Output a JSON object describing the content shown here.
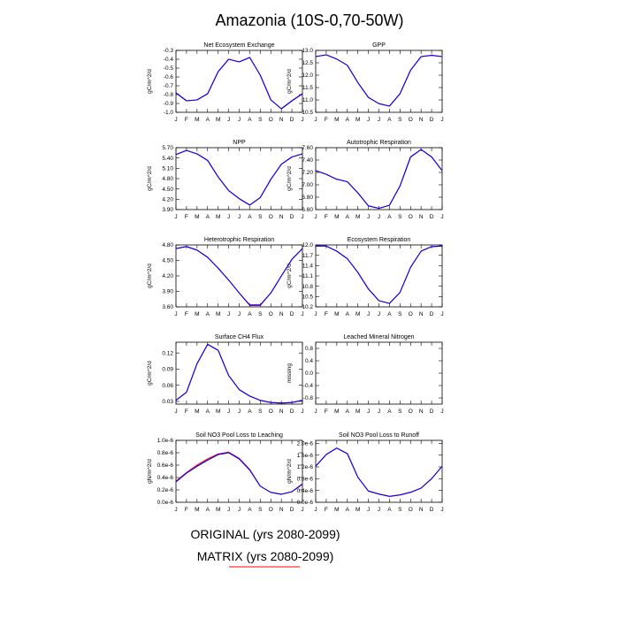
{
  "figure": {
    "title": "Amazonia (10S-0,70-50W)",
    "legend": [
      {
        "label": "ORIGINAL (yrs 2080-2099)",
        "color": "#0000ff"
      },
      {
        "label": "MATRIX (yrs 2080-2099)",
        "color": "#ff0000"
      }
    ],
    "month_labels": [
      "J",
      "F",
      "M",
      "A",
      "M",
      "J",
      "J",
      "A",
      "S",
      "O",
      "N",
      "D",
      "J"
    ]
  },
  "chart_data": [
    {
      "type": "line",
      "title": "Net Ecosystem Exchange",
      "ylabel": "gC/m^2/d",
      "ylim": [
        -1.0,
        -0.3
      ],
      "yticks": [
        "-0.3",
        "-0.4",
        "-0.5",
        "-0.6",
        "-0.7",
        "-0.8",
        "-0.9",
        "-1.0"
      ],
      "x": [
        "J",
        "F",
        "M",
        "A",
        "M",
        "J",
        "J",
        "A",
        "S",
        "O",
        "N",
        "D",
        "J"
      ],
      "series": [
        {
          "values": [
            -0.78,
            -0.87,
            -0.86,
            -0.79,
            -0.54,
            -0.4,
            -0.43,
            -0.38,
            -0.58,
            -0.86,
            -0.96,
            -0.87,
            -0.79
          ]
        },
        {
          "values": [
            -0.78,
            -0.87,
            -0.86,
            -0.79,
            -0.54,
            -0.4,
            -0.43,
            -0.38,
            -0.58,
            -0.86,
            -0.96,
            -0.87,
            -0.79
          ]
        }
      ]
    },
    {
      "type": "line",
      "title": "GPP",
      "ylabel": "gC/m^2/d",
      "ylim": [
        10.5,
        13.0
      ],
      "yticks": [
        "13.0",
        "12.5",
        "12.0",
        "11.5",
        "11.0",
        "10.5"
      ],
      "x": [
        "J",
        "F",
        "M",
        "A",
        "M",
        "J",
        "J",
        "A",
        "S",
        "O",
        "N",
        "D",
        "J"
      ],
      "series": [
        {
          "values": [
            12.75,
            12.82,
            12.65,
            12.4,
            11.7,
            11.1,
            10.85,
            10.75,
            11.25,
            12.2,
            12.75,
            12.8,
            12.75
          ]
        },
        {
          "values": [
            12.75,
            12.82,
            12.65,
            12.4,
            11.7,
            11.1,
            10.85,
            10.75,
            11.25,
            12.2,
            12.75,
            12.8,
            12.75
          ]
        }
      ]
    },
    {
      "type": "line",
      "title": "NPP",
      "ylabel": "gC/m^2/d",
      "ylim": [
        3.9,
        5.7
      ],
      "yticks": [
        "5.70",
        "5.40",
        "5.10",
        "4.80",
        "4.50",
        "4.20",
        "3.90"
      ],
      "x": [
        "J",
        "F",
        "M",
        "A",
        "M",
        "J",
        "J",
        "A",
        "S",
        "O",
        "N",
        "D",
        "J"
      ],
      "series": [
        {
          "values": [
            5.5,
            5.62,
            5.52,
            5.33,
            4.85,
            4.45,
            4.22,
            4.03,
            4.25,
            4.78,
            5.22,
            5.43,
            5.52
          ]
        },
        {
          "values": [
            5.5,
            5.62,
            5.52,
            5.33,
            4.85,
            4.45,
            4.22,
            4.03,
            4.25,
            4.78,
            5.22,
            5.43,
            5.52
          ]
        }
      ]
    },
    {
      "type": "line",
      "title": "Autotrophic Respiration",
      "ylabel": "gC/m^2/d",
      "ylim": [
        6.6,
        7.6
      ],
      "yticks": [
        "7.60",
        "7.40",
        "7.20",
        "7.00",
        "6.80",
        "6.60"
      ],
      "x": [
        "J",
        "F",
        "M",
        "A",
        "M",
        "J",
        "J",
        "A",
        "S",
        "O",
        "N",
        "D",
        "J"
      ],
      "series": [
        {
          "values": [
            7.23,
            7.17,
            7.09,
            7.05,
            6.87,
            6.66,
            6.62,
            6.67,
            6.98,
            7.45,
            7.57,
            7.45,
            7.23
          ]
        },
        {
          "values": [
            7.23,
            7.17,
            7.09,
            7.05,
            6.87,
            6.66,
            6.62,
            6.67,
            6.98,
            7.45,
            7.57,
            7.45,
            7.23
          ]
        }
      ]
    },
    {
      "type": "line",
      "title": "Heterotrophic Respiration",
      "ylabel": "gC/m^2/d",
      "ylim": [
        3.6,
        4.8
      ],
      "yticks": [
        "4.80",
        "4.50",
        "4.20",
        "3.90",
        "3.60"
      ],
      "x": [
        "J",
        "F",
        "M",
        "A",
        "M",
        "J",
        "J",
        "A",
        "S",
        "O",
        "N",
        "D",
        "J"
      ],
      "series": [
        {
          "values": [
            4.73,
            4.77,
            4.7,
            4.56,
            4.35,
            4.12,
            3.87,
            3.63,
            3.63,
            3.87,
            4.2,
            4.52,
            4.73
          ]
        },
        {
          "values": [
            4.73,
            4.77,
            4.7,
            4.56,
            4.35,
            4.12,
            3.87,
            3.64,
            3.64,
            3.87,
            4.2,
            4.52,
            4.73
          ]
        }
      ]
    },
    {
      "type": "line",
      "title": "Ecosystem Respiration",
      "ylabel": "gC/m^2/d",
      "ylim": [
        10.2,
        12.0
      ],
      "yticks": [
        "12.0",
        "11.7",
        "11.4",
        "11.1",
        "10.8",
        "10.5",
        "10.2"
      ],
      "x": [
        "J",
        "F",
        "M",
        "A",
        "M",
        "J",
        "J",
        "A",
        "S",
        "O",
        "N",
        "D",
        "J"
      ],
      "series": [
        {
          "values": [
            11.97,
            11.97,
            11.82,
            11.6,
            11.2,
            10.72,
            10.38,
            10.3,
            10.62,
            11.35,
            11.82,
            11.95,
            11.97
          ]
        },
        {
          "values": [
            11.97,
            11.97,
            11.82,
            11.6,
            11.2,
            10.72,
            10.38,
            10.3,
            10.62,
            11.35,
            11.82,
            11.95,
            11.97
          ]
        }
      ]
    },
    {
      "type": "line",
      "title": "Surface CH4 Flux",
      "ylabel": "gC/m^2/d",
      "ylim": [
        0.025,
        0.14
      ],
      "yticks": [
        "0.12",
        "0.09",
        "0.06",
        "0.03"
      ],
      "ytick_values": [
        0.12,
        0.09,
        0.06,
        0.03
      ],
      "x": [
        "J",
        "F",
        "M",
        "A",
        "M",
        "J",
        "J",
        "A",
        "S",
        "O",
        "N",
        "D",
        "J"
      ],
      "series": [
        {
          "values": [
            0.032,
            0.047,
            0.1,
            0.136,
            0.125,
            0.078,
            0.052,
            0.04,
            0.032,
            0.028,
            0.027,
            0.028,
            0.032
          ]
        },
        {
          "values": [
            0.032,
            0.047,
            0.1,
            0.136,
            0.125,
            0.078,
            0.052,
            0.04,
            0.032,
            0.028,
            0.027,
            0.028,
            0.032
          ]
        }
      ]
    },
    {
      "type": "line",
      "title": "Leached Mineral Nitrogen",
      "ylabel": "missing",
      "ylim": [
        -1.0,
        1.0
      ],
      "yticks": [
        "0.8",
        "0.4",
        "0.0",
        "-0.4",
        "-0.8"
      ],
      "ytick_values": [
        0.8,
        0.4,
        0.0,
        -0.4,
        -0.8
      ],
      "x": [
        "J",
        "F",
        "M",
        "A",
        "M",
        "J",
        "J",
        "A",
        "S",
        "O",
        "N",
        "D",
        "J"
      ],
      "series": []
    },
    {
      "type": "line",
      "title": "Soil NO3 Pool Loss to Leaching",
      "ylabel": "gN/m^2/d",
      "ylim": [
        0.0,
        1.0
      ],
      "yticks": [
        "1.0e-6",
        "0.8e-6",
        "0.6e-6",
        "0.4e-6",
        "0.2e-6",
        "0.0e-6"
      ],
      "ytick_values": [
        1.0,
        0.8,
        0.6,
        0.4,
        0.2,
        0.0
      ],
      "x": [
        "J",
        "F",
        "M",
        "A",
        "M",
        "J",
        "J",
        "A",
        "S",
        "O",
        "N",
        "D",
        "J"
      ],
      "series": [
        {
          "values": [
            0.33,
            0.47,
            0.58,
            0.68,
            0.77,
            0.8,
            0.7,
            0.52,
            0.26,
            0.16,
            0.13,
            0.17,
            0.29
          ]
        },
        {
          "values": [
            0.34,
            0.48,
            0.6,
            0.7,
            0.78,
            0.81,
            0.71,
            0.53,
            0.26,
            0.16,
            0.13,
            0.17,
            0.3
          ]
        }
      ]
    },
    {
      "type": "line",
      "title": "Soil NO3 Pool Loss to Runoff",
      "ylabel": "gN/m^2/d",
      "ylim": [
        0.0,
        2.1
      ],
      "yticks": [
        "2.0e-6",
        "1.6e-6",
        "1.2e-6",
        "0.8e-6",
        "0.4e-6",
        "0.0e-6"
      ],
      "ytick_values": [
        2.0,
        1.6,
        1.2,
        0.8,
        0.4,
        0.0
      ],
      "x": [
        "J",
        "F",
        "M",
        "A",
        "M",
        "J",
        "J",
        "A",
        "S",
        "O",
        "N",
        "D",
        "J"
      ],
      "series": [
        {
          "values": [
            1.22,
            1.62,
            1.84,
            1.65,
            0.85,
            0.38,
            0.28,
            0.2,
            0.25,
            0.34,
            0.48,
            0.8,
            1.22
          ]
        },
        {
          "values": [
            1.22,
            1.62,
            1.84,
            1.65,
            0.85,
            0.38,
            0.28,
            0.2,
            0.25,
            0.34,
            0.48,
            0.8,
            1.22
          ]
        }
      ]
    }
  ]
}
